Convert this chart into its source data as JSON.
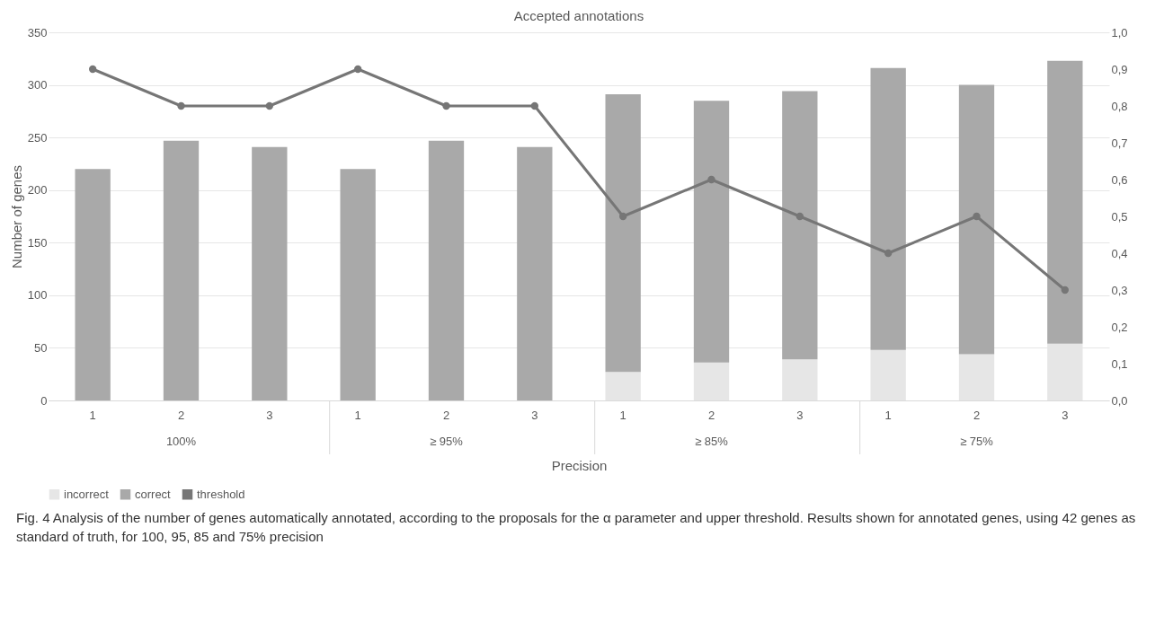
{
  "chart_data": {
    "type": "bar",
    "title": "Accepted annotations",
    "xlabel": "Precision",
    "ylabel": "Number of genes",
    "categories": [
      "1",
      "2",
      "3",
      "1",
      "2",
      "3",
      "1",
      "2",
      "3",
      "1",
      "2",
      "3"
    ],
    "stacked": true,
    "series": [
      {
        "name": "incorrect",
        "color": "#e6e6e6",
        "values": [
          0,
          0,
          0,
          0,
          0,
          0,
          27,
          36,
          39,
          48,
          44,
          54
        ]
      },
      {
        "name": "correct",
        "color": "#a9a9a9",
        "values": [
          220,
          247,
          241,
          220,
          247,
          241,
          264,
          249,
          255,
          268,
          256,
          269
        ]
      },
      {
        "name": "threshold",
        "type": "line",
        "axis": "y2",
        "color": "#767676",
        "values": [
          0.9,
          0.8,
          0.8,
          0.9,
          0.8,
          0.8,
          0.5,
          0.6,
          0.5,
          0.4,
          0.5,
          0.3
        ]
      }
    ],
    "ylim": [
      0,
      350
    ],
    "yticks": [
      0,
      50,
      100,
      150,
      200,
      250,
      300,
      350
    ],
    "y2lim": [
      0,
      1
    ],
    "y2ticks": [
      {
        "value": 0,
        "label": "0,0"
      },
      {
        "value": 0.1,
        "label": "0,1"
      },
      {
        "value": 0.2,
        "label": "0,2"
      },
      {
        "value": 0.3,
        "label": "0,3"
      },
      {
        "value": 0.4,
        "label": "0,4"
      },
      {
        "value": 0.5,
        "label": "0,5"
      },
      {
        "value": 0.6,
        "label": "0,6"
      },
      {
        "value": 0.7,
        "label": "0,7"
      },
      {
        "value": 0.8,
        "label": "0,8"
      },
      {
        "value": 0.9,
        "label": "0,9"
      },
      {
        "value": 1,
        "label": "1,0"
      }
    ],
    "grid": "y",
    "legend": "bottom",
    "marker": "circle",
    "line_style": "solid",
    "annotations": [
      "100%",
      "≥ 95%",
      "≥ 85%",
      "≥ 75%",
      "Fig. 4 Analysis of the number of genes automatically annotated, according to the proposals for the α parameter and upper threshold. Results shown for annotated genes, using 42 genes as standard of truth, for 100, 95, 85 and 75% precision"
    ]
  }
}
